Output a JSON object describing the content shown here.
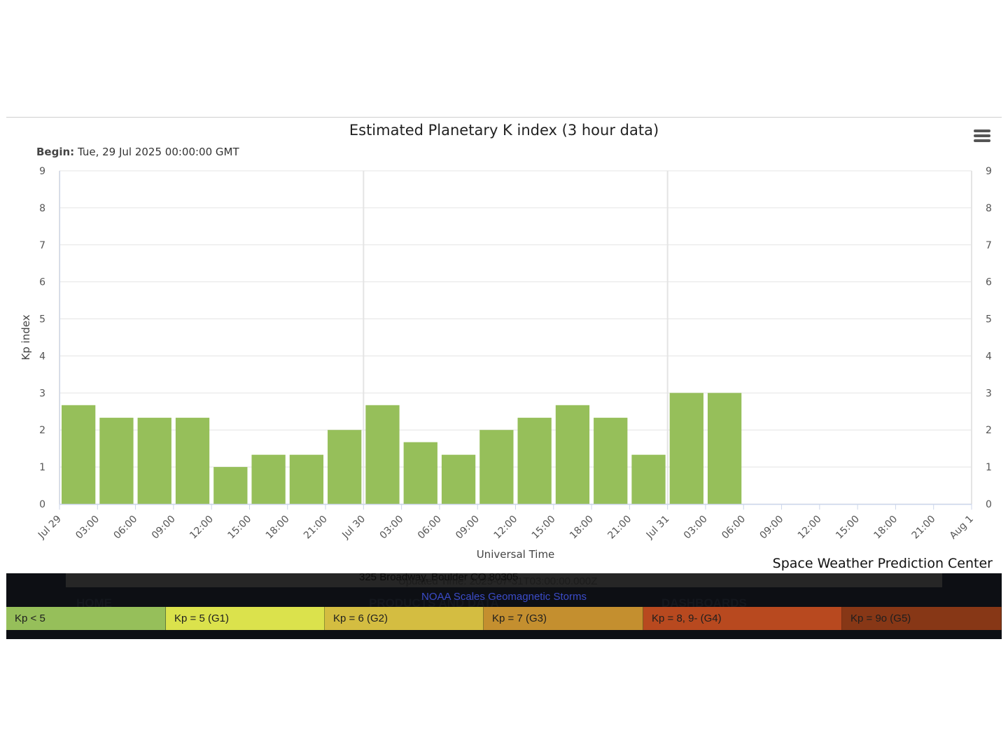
{
  "header": {
    "title": "Estimated Planetary K index (3 hour data)",
    "begin_label": "Begin:",
    "begin_value": "Tue, 29 Jul 2025 00:00:00 GMT",
    "menu_icon": "hamburger-menu-icon"
  },
  "chart_data": {
    "type": "bar",
    "title": "Estimated Planetary K index (3 hour data)",
    "subtitle": "Begin: Tue, 29 Jul 2025 00:00:00 GMT",
    "xlabel": "Universal Time",
    "ylabel": "Kp index",
    "ylim": [
      0,
      9
    ],
    "yticks": [
      0,
      1,
      2,
      3,
      4,
      5,
      6,
      7,
      8,
      9
    ],
    "xticks": [
      "Jul 29",
      "03:00",
      "06:00",
      "09:00",
      "12:00",
      "15:00",
      "18:00",
      "21:00",
      "Jul 30",
      "03:00",
      "06:00",
      "09:00",
      "12:00",
      "15:00",
      "18:00",
      "21:00",
      "Jul 31",
      "03:00",
      "06:00",
      "09:00",
      "12:00",
      "15:00",
      "18:00",
      "21:00",
      "Aug 1"
    ],
    "categories": [
      "Jul 29 00:00",
      "Jul 29 03:00",
      "Jul 29 06:00",
      "Jul 29 09:00",
      "Jul 29 12:00",
      "Jul 29 15:00",
      "Jul 29 18:00",
      "Jul 29 21:00",
      "Jul 30 00:00",
      "Jul 30 03:00",
      "Jul 30 06:00",
      "Jul 30 09:00",
      "Jul 30 12:00",
      "Jul 30 15:00",
      "Jul 30 18:00",
      "Jul 30 21:00",
      "Jul 31 00:00",
      "Jul 31 03:00"
    ],
    "values": [
      2.67,
      2.33,
      2.33,
      2.33,
      1.0,
      1.33,
      1.33,
      2.0,
      2.67,
      1.67,
      1.33,
      2.0,
      2.33,
      2.67,
      2.33,
      1.33,
      3.0,
      3.0
    ],
    "bar_color": "#96bf5a",
    "grid": true,
    "y_axis_mirrored_right": true
  },
  "credit": "Space Weather Prediction Center",
  "footer": {
    "address": "325 Broadway, Boulder CO 80305",
    "updated": "Updated Time: 2025-07-31T03:00:00.000Z",
    "nav": [
      "HOME",
      "PRODUCTS AND DATA",
      "DASHBOARDS"
    ],
    "scale_title": "NOAA Scales Geomagnetic Storms",
    "scale": [
      {
        "label": "Kp < 5",
        "color": "#96bf5a"
      },
      {
        "label": "Kp = 5 (G1)",
        "color": "#dbe24c"
      },
      {
        "label": "Kp = 6 (G2)",
        "color": "#d4bd41"
      },
      {
        "label": "Kp = 7 (G3)",
        "color": "#c48f2f"
      },
      {
        "label": "Kp = 8, 9- (G4)",
        "color": "#b8491f"
      },
      {
        "label": "Kp = 9o (G5)",
        "color": "#873716"
      }
    ]
  }
}
